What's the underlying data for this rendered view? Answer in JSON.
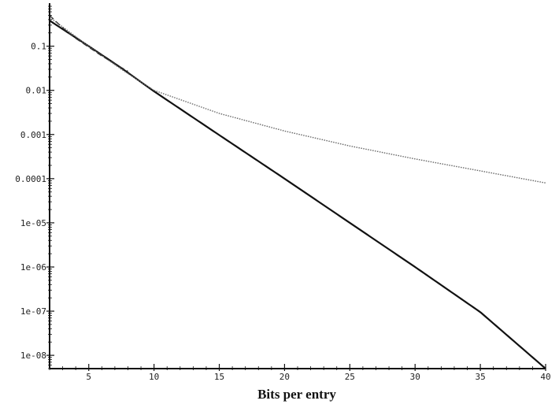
{
  "chart_data": {
    "type": "line",
    "title": "",
    "xlabel": "Bits per entry",
    "ylabel": "",
    "xlim": [
      2,
      40
    ],
    "ylim": [
      5e-09,
      0.8
    ],
    "y_scale": "log",
    "grid": false,
    "x_ticks": [
      {
        "value": 5,
        "label": "5"
      },
      {
        "value": 10,
        "label": "10"
      },
      {
        "value": 15,
        "label": "15"
      },
      {
        "value": 20,
        "label": "20"
      },
      {
        "value": 25,
        "label": "25"
      },
      {
        "value": 30,
        "label": "30"
      },
      {
        "value": 35,
        "label": "35"
      },
      {
        "value": 40,
        "label": "40"
      }
    ],
    "y_ticks": [
      {
        "value": 0.1,
        "label": "0.1"
      },
      {
        "value": 0.01,
        "label": "0.01"
      },
      {
        "value": 0.001,
        "label": "0.001"
      },
      {
        "value": 0.0001,
        "label": "0.0001"
      },
      {
        "value": 1e-05,
        "label": "1e-05"
      },
      {
        "value": 1e-06,
        "label": "1e-06"
      },
      {
        "value": 1e-07,
        "label": "1e-07"
      },
      {
        "value": 1e-08,
        "label": "1e-08"
      }
    ],
    "series": [
      {
        "style": "solid",
        "color": "#111111",
        "x": [
          2,
          5,
          7.5,
          10,
          15,
          20,
          25,
          30,
          35,
          40
        ],
        "y": [
          0.38,
          0.1,
          0.032,
          0.0095,
          0.00097,
          0.0001,
          1e-05,
          1e-06,
          9.5e-08,
          5e-09
        ]
      },
      {
        "style": "dotted",
        "color": "#666666",
        "x": [
          2,
          5,
          7.5,
          10,
          15,
          20,
          25,
          30,
          35,
          40
        ],
        "y": [
          0.45,
          0.1,
          0.03,
          0.01,
          0.003,
          0.0012,
          0.00055,
          0.00028,
          0.00015,
          8e-05
        ]
      },
      {
        "style": "dashed",
        "color": "#333333",
        "x": [
          2,
          3,
          4,
          5,
          6,
          7,
          8
        ],
        "y": [
          0.5,
          0.26,
          0.15,
          0.095,
          0.06,
          0.04,
          0.027
        ]
      }
    ]
  }
}
